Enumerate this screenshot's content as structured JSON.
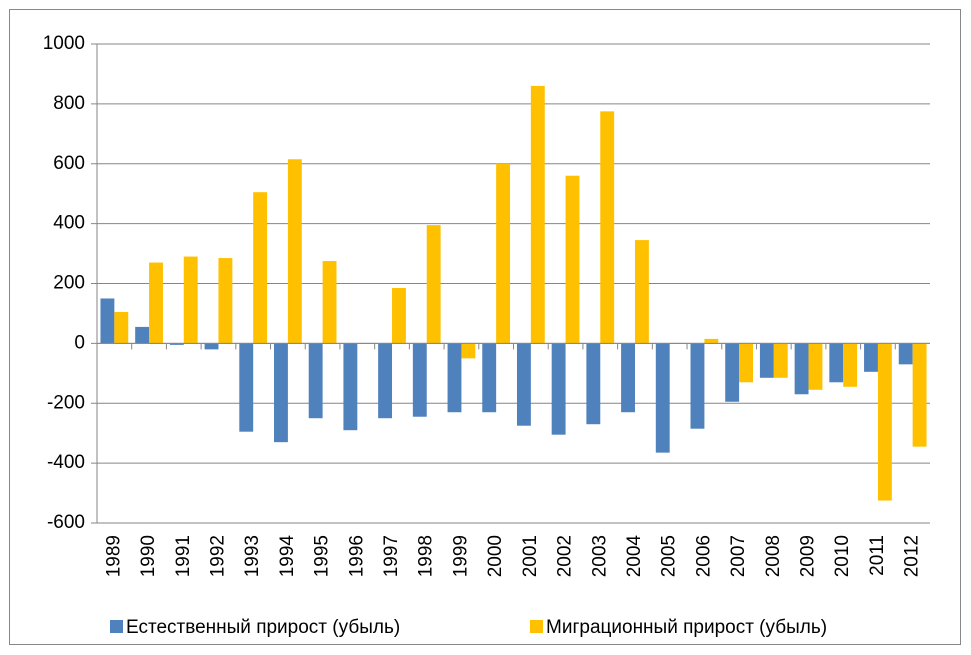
{
  "chart_data": {
    "type": "bar",
    "categories": [
      "1989",
      "1990",
      "1991",
      "1992",
      "1993",
      "1994",
      "1995",
      "1996",
      "1997",
      "1998",
      "1999",
      "2000",
      "2001",
      "2002",
      "2003",
      "2004",
      "2005",
      "2006",
      "2007",
      "2008",
      "2009",
      "2010",
      "2011",
      "2012"
    ],
    "series": [
      {
        "name": "Естественный прирост (убыль)",
        "color": "#4f81bd",
        "values": [
          150,
          55,
          -5,
          -20,
          -295,
          -330,
          -250,
          -290,
          -250,
          -245,
          -230,
          -230,
          -275,
          -305,
          -270,
          -230,
          -365,
          -285,
          -195,
          -115,
          -170,
          -130,
          -95,
          -70
        ]
      },
      {
        "name": "Миграционный прирост (убыль)",
        "color": "#ffc000",
        "values": [
          105,
          270,
          290,
          285,
          505,
          615,
          275,
          0,
          185,
          395,
          -50,
          600,
          860,
          560,
          775,
          345,
          0,
          15,
          -130,
          -115,
          -155,
          -145,
          -525,
          -345
        ]
      }
    ],
    "ylim": [
      -600,
      1000
    ],
    "yticks": [
      -600,
      -400,
      -200,
      0,
      200,
      400,
      600,
      800,
      1000
    ],
    "grid": true,
    "legend": "bottom"
  }
}
